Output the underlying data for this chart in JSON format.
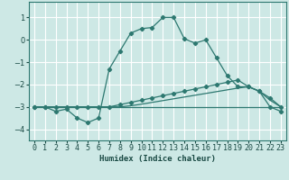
{
  "xlabel": "Humidex (Indice chaleur)",
  "background_color": "#cde8e5",
  "grid_color": "#ffffff",
  "line_color": "#2d7870",
  "x_ticks": [
    0,
    1,
    2,
    3,
    4,
    5,
    6,
    7,
    8,
    9,
    10,
    11,
    12,
    13,
    14,
    15,
    16,
    17,
    18,
    19,
    20,
    21,
    22,
    23
  ],
  "ylim": [
    -4.5,
    1.7
  ],
  "xlim": [
    -0.5,
    23.5
  ],
  "series": [
    {
      "x": [
        0,
        1,
        2,
        3,
        4,
        5,
        6,
        7,
        8,
        9,
        10,
        11,
        12,
        13,
        14,
        15,
        16,
        17,
        18,
        19,
        20,
        21,
        22,
        23
      ],
      "y": [
        -3.0,
        -3.0,
        -3.2,
        -3.1,
        -3.5,
        -3.7,
        -3.5,
        -1.3,
        -0.5,
        0.3,
        0.5,
        0.55,
        1.0,
        1.0,
        0.05,
        -0.15,
        0.0,
        -0.8,
        -1.6,
        -2.1,
        -2.1,
        -2.3,
        -3.0,
        -3.2
      ],
      "marker": true
    },
    {
      "x": [
        0,
        1,
        2,
        3,
        4,
        5,
        6,
        7,
        8,
        9,
        10,
        11,
        12,
        13,
        14,
        15,
        16,
        17,
        18,
        19,
        20,
        21,
        22,
        23
      ],
      "y": [
        -3.0,
        -3.0,
        -3.0,
        -3.0,
        -3.0,
        -3.0,
        -3.0,
        -3.0,
        -2.9,
        -2.8,
        -2.7,
        -2.6,
        -2.5,
        -2.4,
        -2.3,
        -2.2,
        -2.1,
        -2.0,
        -1.9,
        -1.8,
        -2.1,
        -2.3,
        -2.6,
        -3.0
      ],
      "marker": true
    },
    {
      "x": [
        0,
        1,
        2,
        3,
        4,
        5,
        6,
        7,
        8,
        9,
        10,
        11,
        12,
        13,
        14,
        15,
        16,
        17,
        18,
        19,
        20,
        21,
        22,
        23
      ],
      "y": [
        -3.0,
        -3.0,
        -3.0,
        -3.0,
        -3.0,
        -3.0,
        -3.0,
        -3.0,
        -3.0,
        -2.95,
        -2.88,
        -2.8,
        -2.72,
        -2.64,
        -2.56,
        -2.48,
        -2.4,
        -2.32,
        -2.24,
        -2.16,
        -2.1,
        -2.3,
        -2.7,
        -3.0
      ],
      "marker": false
    },
    {
      "x": [
        0,
        23
      ],
      "y": [
        -3.0,
        -3.0
      ],
      "marker": false
    }
  ]
}
